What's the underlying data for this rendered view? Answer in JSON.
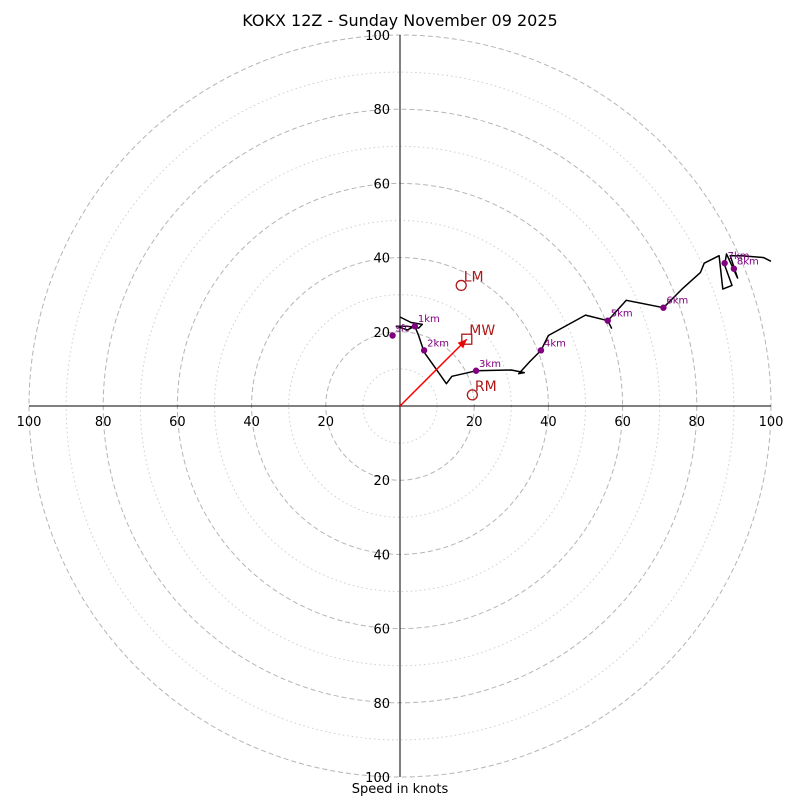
{
  "title": "KOKX 12Z - Sunday November 09 2025",
  "chart_data": {
    "type": "hodograph",
    "title": "KOKX 12Z - Sunday November 09 2025",
    "xlabel": "Speed in knots",
    "ylabel": "",
    "xlim": [
      -100,
      100
    ],
    "ylim": [
      -100,
      100
    ],
    "rings": [
      10,
      20,
      30,
      40,
      50,
      60,
      70,
      80,
      90,
      100
    ],
    "tick_labels": {
      "left": [
        "100",
        "80",
        "60",
        "40",
        "20"
      ],
      "right": [
        "20",
        "40",
        "60",
        "80",
        "100"
      ],
      "top": [
        "100",
        "80",
        "60",
        "40",
        "20"
      ],
      "bottom": [
        "20",
        "40",
        "60",
        "80",
        "100"
      ]
    },
    "trace": [
      [
        0,
        24
      ],
      [
        3,
        22.5
      ],
      [
        6,
        22
      ],
      [
        5,
        21
      ],
      [
        2,
        21.5
      ],
      [
        -1,
        21.5
      ],
      [
        2,
        20.5
      ],
      [
        4,
        21.5
      ],
      [
        5,
        19
      ],
      [
        6,
        16
      ],
      [
        6.5,
        14.5
      ],
      [
        9,
        11
      ],
      [
        12.5,
        6
      ],
      [
        14,
        8
      ],
      [
        20.5,
        9.5
      ],
      [
        30,
        9.7
      ],
      [
        33.5,
        9
      ],
      [
        32,
        8.7
      ],
      [
        35,
        12
      ],
      [
        38,
        15
      ],
      [
        40,
        19
      ],
      [
        50,
        24.5
      ],
      [
        56,
        23
      ],
      [
        57,
        21
      ],
      [
        56,
        23
      ],
      [
        61,
        28.5
      ],
      [
        71,
        26.5
      ],
      [
        76,
        31.5
      ],
      [
        81,
        36
      ],
      [
        82,
        38.5
      ],
      [
        86,
        40.5
      ],
      [
        87,
        31.5
      ],
      [
        89.5,
        32.5
      ],
      [
        87.5,
        38
      ],
      [
        88,
        41
      ],
      [
        91,
        34.5
      ],
      [
        89,
        40.5
      ],
      [
        92,
        40.5
      ],
      [
        98,
        40
      ],
      [
        100,
        39
      ]
    ],
    "heights": [
      {
        "label": "sfc",
        "u": -2,
        "v": 19
      },
      {
        "label": "1km",
        "u": 4,
        "v": 21.5
      },
      {
        "label": "2km",
        "u": 6.5,
        "v": 15
      },
      {
        "label": "3km",
        "u": 20.5,
        "v": 9.5
      },
      {
        "label": "4km",
        "u": 38,
        "v": 15
      },
      {
        "label": "5km",
        "u": 56,
        "v": 23
      },
      {
        "label": "6km",
        "u": 71,
        "v": 26.5
      },
      {
        "label": "7km",
        "u": 87.5,
        "v": 38.5
      },
      {
        "label": "8km",
        "u": 90,
        "v": 37
      }
    ],
    "storm_motion": {
      "LM": {
        "label": "LM",
        "u": 16.5,
        "v": 32.5
      },
      "MW": {
        "label": "MW",
        "u": 18,
        "v": 18
      },
      "RM": {
        "label": "RM",
        "u": 19.5,
        "v": 3
      }
    },
    "shear_vector": {
      "from": [
        0,
        0
      ],
      "to": [
        18,
        18
      ]
    },
    "colors": {
      "trace": "#000000",
      "height_markers": "#800080",
      "storm_markers": "#b01818",
      "shear_vector": "#ff0000",
      "rings": "#bbbbbb"
    }
  }
}
